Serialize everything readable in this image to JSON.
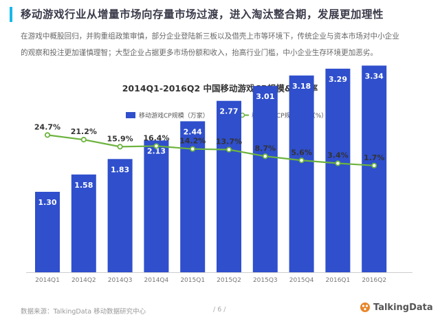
{
  "header": {
    "title": "移动游戏行业从增量市场向存量市场过渡，进入淘汰整合期，发展更加理性",
    "paragraph": "在游戏中概股回归，并购重组政策审慎，部分企业登陆新三板以及借壳上市等环境下，传统企业与资本市场对中小企业的观察和投注更加谨慎理智；大型企业占据更多市场份额和收入，抬高行业门槛，中小企业生存环境更加恶劣。"
  },
  "footer": {
    "source": "数据来源：TalkingData  移动数据研究中心",
    "page": "/ 6 /",
    "logo_text": "TalkingData"
  },
  "colors": {
    "bar": "#2f4fcc",
    "line": "#6cb33e",
    "accent": "#16b8e8"
  },
  "chart_data": {
    "type": "bar",
    "title": "2014Q1-2016Q2 中国移动游戏CP规模&增长率",
    "categories": [
      "2014Q1",
      "2014Q2",
      "2014Q3",
      "2014Q4",
      "2015Q1",
      "2015Q2",
      "2015Q3",
      "2015Q4",
      "2016Q1",
      "2016Q2"
    ],
    "series": [
      {
        "name": "移动游戏CP规模（万家）",
        "type": "bar",
        "values": [
          1.3,
          1.58,
          1.83,
          2.13,
          2.44,
          2.77,
          3.01,
          3.18,
          3.29,
          3.34
        ],
        "labels": [
          "1.30",
          "1.58",
          "1.83",
          "2.13",
          "2.44",
          "2.77",
          "3.01",
          "3.18",
          "3.29",
          "3.34"
        ]
      },
      {
        "name": "移动游戏CP规模增速（%）",
        "type": "line",
        "values": [
          24.7,
          21.2,
          15.9,
          16.4,
          14.2,
          13.7,
          8.7,
          5.6,
          3.4,
          1.7
        ],
        "labels": [
          "24.7%",
          "21.2%",
          "15.9%",
          "16.4%",
          "14.2%",
          "13.7%",
          "8.7%",
          "5.6%",
          "3.4%",
          "1.7%"
        ]
      }
    ],
    "legend_position": "top",
    "grid": false
  }
}
